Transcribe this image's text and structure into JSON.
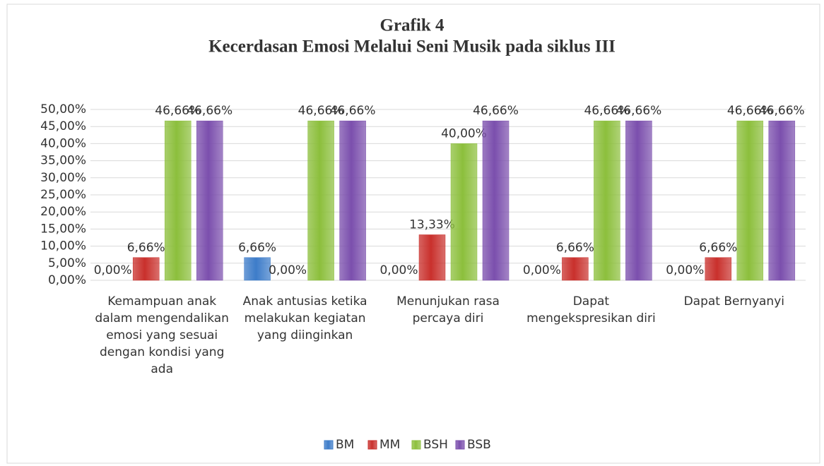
{
  "chart_data": {
    "type": "bar",
    "title": "Grafik 4",
    "subtitle": "Kecerdasan Emosi Melalui Seni Musik pada siklus III",
    "categories": [
      "Kemampuan anak dalam mengendalikan emosi yang sesuai dengan kondisi yang ada",
      "Anak antusias ketika melakukan kegiatan yang diinginkan",
      "Menunjukan rasa percaya diri",
      "Dapat mengekspresikan diri",
      "Dapat Bernyanyi"
    ],
    "series": [
      {
        "name": "BM",
        "color": "#3d7cc9",
        "values": [
          0,
          6.66,
          0,
          0,
          0
        ],
        "value_labels": [
          "0,00%",
          "6,66%",
          "0,00%",
          "0,00%",
          "0,00%"
        ]
      },
      {
        "name": "MM",
        "color": "#c9302c",
        "values": [
          6.66,
          0,
          13.33,
          6.66,
          6.66
        ],
        "value_labels": [
          "6,66%",
          "0,00%",
          "13,33%",
          "6,66%",
          "6,66%"
        ]
      },
      {
        "name": "BSH",
        "color": "#8cbf3c",
        "values": [
          46.66,
          46.66,
          40,
          46.66,
          46.66
        ],
        "value_labels": [
          "46,66%",
          "46,66%",
          "40,00%",
          "46,66%",
          "46,66%"
        ]
      },
      {
        "name": "BSB",
        "color": "#7b4fad",
        "values": [
          46.66,
          46.66,
          46.66,
          46.66,
          46.66
        ],
        "value_labels": [
          "46,66%",
          "46,66%",
          "46,66%",
          "46,66%",
          "46,66%"
        ]
      }
    ],
    "ylim": [
      0,
      50
    ],
    "yticks": [
      {
        "value": 0,
        "label": "0,00%"
      },
      {
        "value": 5,
        "label": "5,00%"
      },
      {
        "value": 10,
        "label": "10,00%"
      },
      {
        "value": 15,
        "label": "15,00%"
      },
      {
        "value": 20,
        "label": "20,00%"
      },
      {
        "value": 25,
        "label": "25,00%"
      },
      {
        "value": 30,
        "label": "30,00%"
      },
      {
        "value": 35,
        "label": "35,00%"
      },
      {
        "value": 40,
        "label": "40,00%"
      },
      {
        "value": 45,
        "label": "45,00%"
      },
      {
        "value": 50,
        "label": "50,00%"
      }
    ],
    "grid": true,
    "legend": "bottom"
  }
}
